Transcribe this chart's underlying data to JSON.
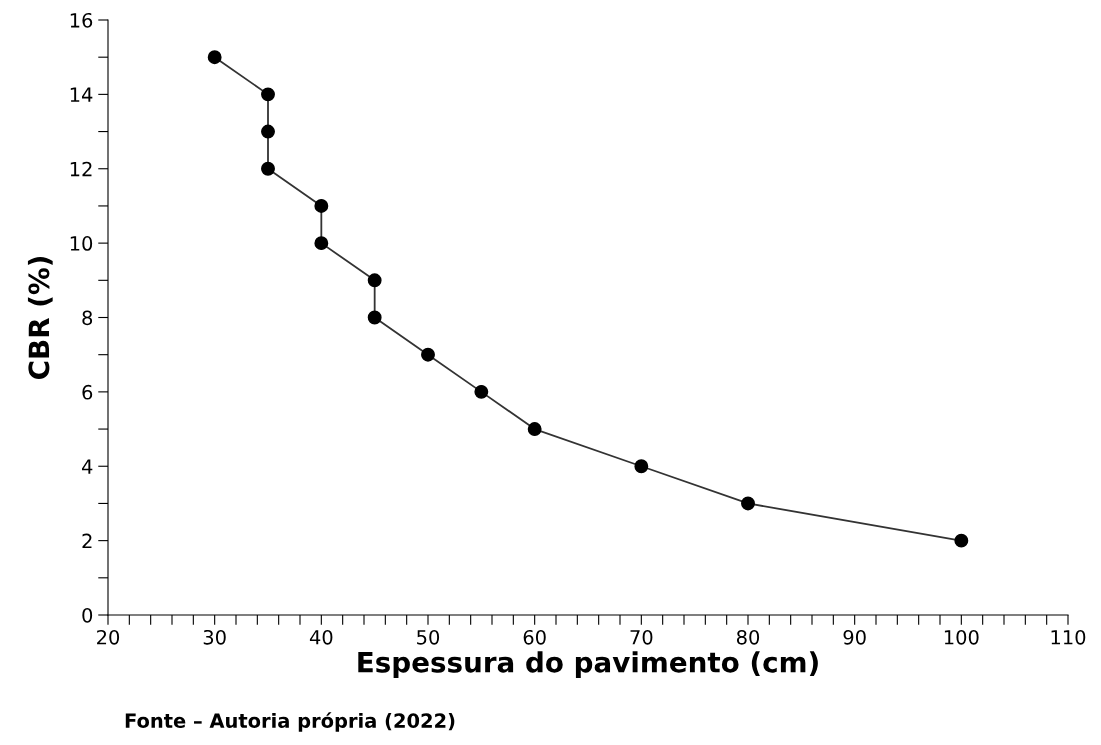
{
  "chart_data": {
    "type": "line",
    "xlabel": "Espessura do pavimento (cm)",
    "ylabel": "CBR (%)",
    "annotations": [
      "Fonte – Autoria própria (2022)"
    ],
    "x": [
      30,
      35,
      35,
      35,
      40,
      40,
      45,
      45,
      50,
      55,
      60,
      70,
      80,
      100
    ],
    "series": [
      {
        "color": "#000000",
        "values": [
          15,
          14,
          13,
          12,
          11,
          10,
          9,
          8,
          7,
          6,
          5,
          4,
          3,
          2
        ]
      }
    ],
    "marker": "circle",
    "line_style": "solid",
    "grid": false,
    "legend": false,
    "xlim": [
      20,
      110
    ],
    "xticks": [
      20,
      {
        "value": 22,
        "label": null
      },
      {
        "value": 24,
        "label": null
      },
      {
        "value": 26,
        "label": null
      },
      {
        "value": 28,
        "label": null
      },
      30,
      {
        "value": 32,
        "label": null
      },
      {
        "value": 34,
        "label": null
      },
      {
        "value": 36,
        "label": null
      },
      {
        "value": 38,
        "label": null
      },
      40,
      {
        "value": 42,
        "label": null
      },
      {
        "value": 44,
        "label": null
      },
      {
        "value": 46,
        "label": null
      },
      {
        "value": 48,
        "label": null
      },
      50,
      {
        "value": 52,
        "label": null
      },
      {
        "value": 54,
        "label": null
      },
      {
        "value": 56,
        "label": null
      },
      {
        "value": 58,
        "label": null
      },
      60,
      {
        "value": 62,
        "label": null
      },
      {
        "value": 64,
        "label": null
      },
      {
        "value": 66,
        "label": null
      },
      {
        "value": 68,
        "label": null
      },
      70,
      {
        "value": 72,
        "label": null
      },
      {
        "value": 74,
        "label": null
      },
      {
        "value": 76,
        "label": null
      },
      {
        "value": 78,
        "label": null
      },
      80,
      {
        "value": 82,
        "label": null
      },
      {
        "value": 84,
        "label": null
      },
      {
        "value": 86,
        "label": null
      },
      {
        "value": 88,
        "label": null
      },
      90,
      {
        "value": 92,
        "label": null
      },
      {
        "value": 94,
        "label": null
      },
      {
        "value": 96,
        "label": null
      },
      {
        "value": 98,
        "label": null
      },
      100,
      {
        "value": 102,
        "label": null
      },
      {
        "value": 104,
        "label": null
      },
      {
        "value": 106,
        "label": null
      },
      {
        "value": 108,
        "label": null
      },
      110
    ],
    "ylim": [
      0,
      16
    ],
    "yticks": [
      0,
      {
        "value": 1,
        "label": null
      },
      2,
      {
        "value": 3,
        "label": null
      },
      4,
      {
        "value": 5,
        "label": null
      },
      6,
      {
        "value": 7,
        "label": null
      },
      8,
      {
        "value": 9,
        "label": null
      },
      10,
      {
        "value": 11,
        "label": null
      },
      12,
      {
        "value": 13,
        "label": null
      },
      14,
      {
        "value": 15,
        "label": null
      },
      16
    ]
  }
}
